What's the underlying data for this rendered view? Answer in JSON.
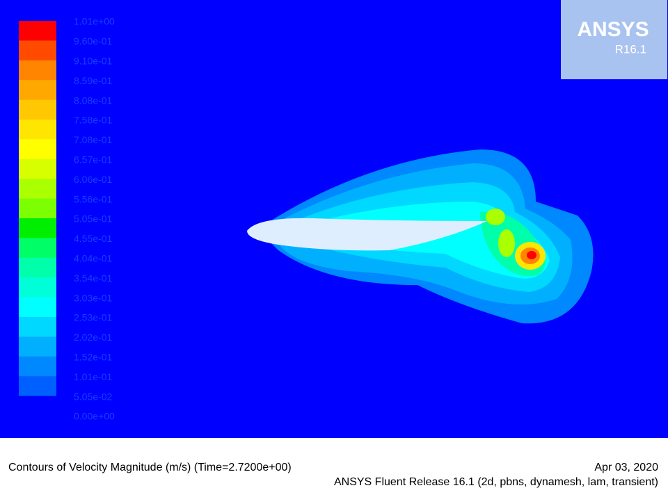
{
  "logo": {
    "name": "ANSYS",
    "release": "R16.1"
  },
  "colorbar": {
    "labels": [
      "1.01e+00",
      "9.60e-01",
      "9.10e-01",
      "8.59e-01",
      "8.08e-01",
      "7.58e-01",
      "7.08e-01",
      "6.57e-01",
      "6.06e-01",
      "5.56e-01",
      "5.05e-01",
      "4.55e-01",
      "4.04e-01",
      "3.54e-01",
      "3.03e-01",
      "2.53e-01",
      "2.02e-01",
      "1.52e-01",
      "1.01e-01",
      "5.05e-02",
      "0.00e+00"
    ],
    "colors": [
      "#ff0000",
      "#ff4a00",
      "#ff8400",
      "#ffa800",
      "#ffc800",
      "#ffe600",
      "#ffff00",
      "#d8ff00",
      "#aaff00",
      "#7cff00",
      "#00ee00",
      "#00ff66",
      "#00ffaa",
      "#00ffd8",
      "#00ffff",
      "#00d8ff",
      "#00b0ff",
      "#0088ff",
      "#0060ff",
      "#0000ff"
    ]
  },
  "footer": {
    "caption": "Contours of Velocity Magnitude (m/s)  (Time=2.7200e+00)",
    "date": "Apr 03, 2020",
    "software": "ANSYS Fluent Release 16.1 (2d, pbns, dynamesh, lam, transient)"
  }
}
